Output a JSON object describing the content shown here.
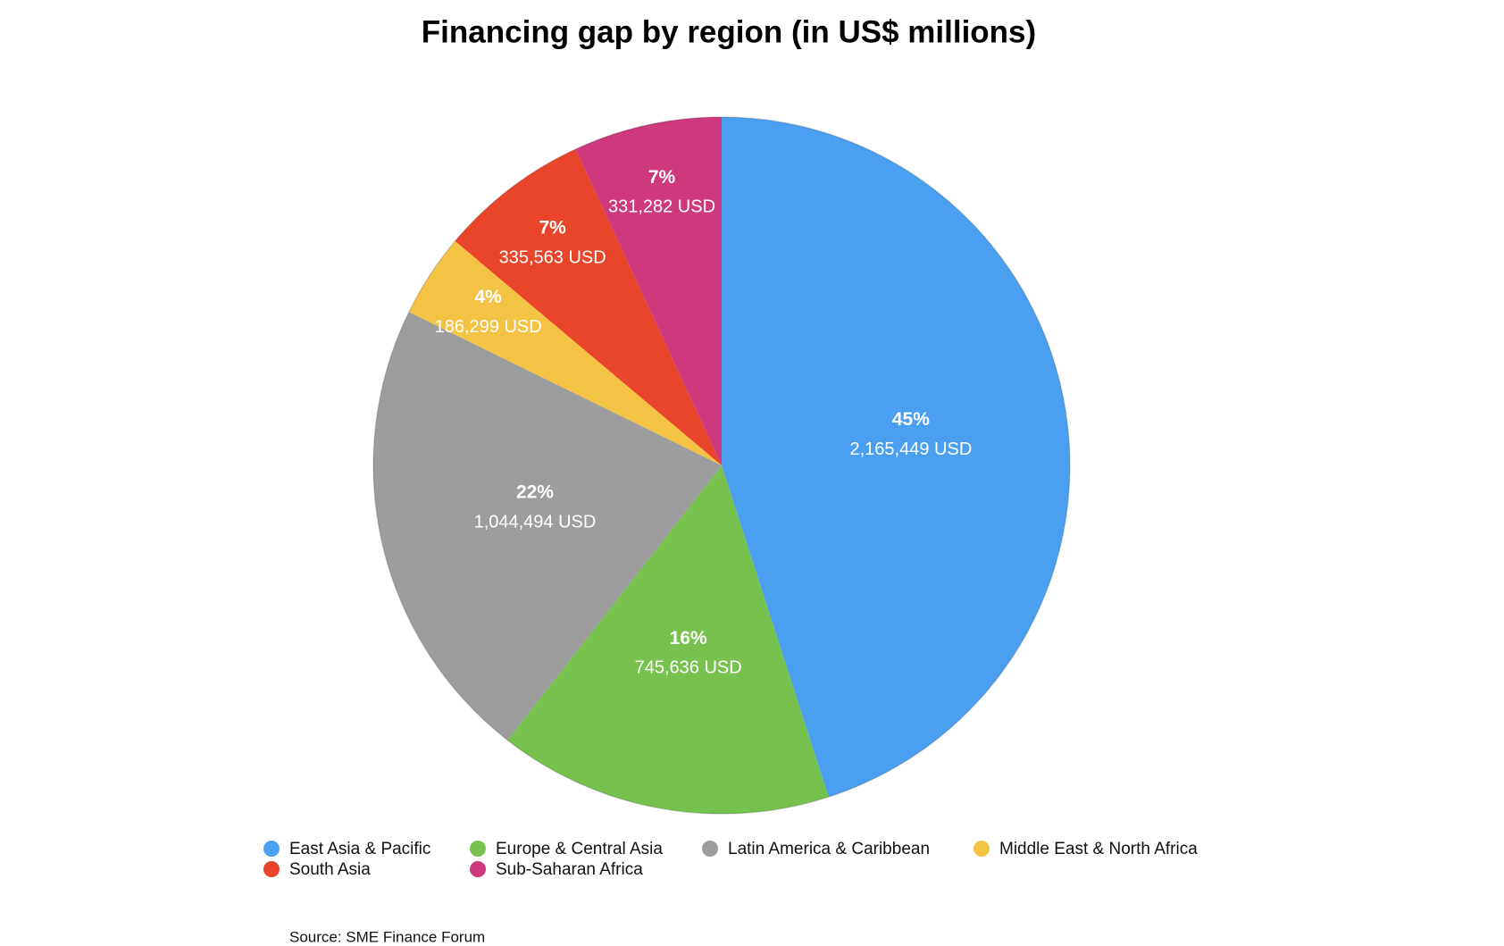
{
  "chart_data": {
    "type": "pie",
    "title": "Financing gap by region (in US$ millions)",
    "categories": [
      "East Asia & Pacific",
      "Europe & Central Asia",
      "Latin America & Caribbean",
      "Middle East & North Africa",
      "South Asia",
      "Sub-Saharan Africa"
    ],
    "values": [
      2165449,
      745636,
      1044494,
      186299,
      335563,
      331282
    ],
    "value_labels": [
      "2,165,449 USD",
      "745,636 USD",
      "1,044,494 USD",
      "186,299 USD",
      "335,563 USD",
      "331,282 USD"
    ],
    "percentages": [
      45,
      16,
      22,
      4,
      7,
      7
    ],
    "percentage_labels": [
      "45%",
      "16%",
      "22%",
      "4%",
      "7%",
      "7%"
    ],
    "colors": [
      "#4a9ff0",
      "#77c14f",
      "#9d9d9d",
      "#f5c343",
      "#e8452a",
      "#cf3a7e"
    ],
    "legend": "bottom",
    "source": "Source: SME Finance Forum"
  }
}
